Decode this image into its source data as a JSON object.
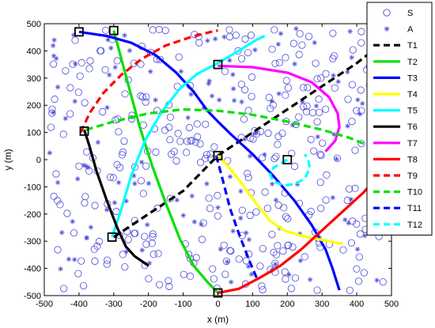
{
  "chart_data": {
    "type": "scatter",
    "xlabel": "x (m)",
    "ylabel": "y (m)",
    "xlim": [
      -500,
      500
    ],
    "ylim": [
      -500,
      500
    ],
    "xticks": [
      "-500",
      "-400",
      "-300",
      "-200",
      "-100",
      "0",
      "100",
      "200",
      "300",
      "400",
      "500"
    ],
    "yticks": [
      "-500",
      "-400",
      "-300",
      "-200",
      "-100",
      "0",
      "100",
      "200",
      "300",
      "400",
      "500"
    ],
    "grid": false,
    "legend_position": "right",
    "legend": [
      {
        "label": "S",
        "marker": "circle",
        "color": "#4a4ad8"
      },
      {
        "label": "A",
        "marker": "asterisk",
        "color": "#4a4ad8"
      },
      {
        "label": "T1",
        "color": "#000000",
        "dashed": true
      },
      {
        "label": "T2",
        "color": "#00e000",
        "dashed": false
      },
      {
        "label": "T3",
        "color": "#0000ff",
        "dashed": false
      },
      {
        "label": "T4",
        "color": "#ffff00",
        "dashed": false
      },
      {
        "label": "T5",
        "color": "#00ffff",
        "dashed": false
      },
      {
        "label": "T6",
        "color": "#000000",
        "dashed": false
      },
      {
        "label": "T7",
        "color": "#ff00ff",
        "dashed": false
      },
      {
        "label": "T8",
        "color": "#ff0000",
        "dashed": false
      },
      {
        "label": "T9",
        "color": "#ff0000",
        "dashed": true
      },
      {
        "label": "T10",
        "color": "#00e000",
        "dashed": true
      },
      {
        "label": "T11",
        "color": "#0000ff",
        "dashed": true
      },
      {
        "label": "T12",
        "color": "#00ffff",
        "dashed": true
      }
    ],
    "series": [
      {
        "name": "T1",
        "points": [
          [
            -300,
            -285
          ],
          [
            -200,
            -200
          ],
          [
            -100,
            -115
          ],
          [
            0,
            15
          ],
          [
            100,
            100
          ],
          [
            200,
            185
          ],
          [
            300,
            270
          ],
          [
            400,
            355
          ],
          [
            430,
            385
          ]
        ]
      },
      {
        "name": "T2",
        "points": [
          [
            -300,
            475
          ],
          [
            -280,
            380
          ],
          [
            -255,
            260
          ],
          [
            -225,
            120
          ],
          [
            -190,
            -20
          ],
          [
            -150,
            -160
          ],
          [
            -110,
            -290
          ],
          [
            -70,
            -390
          ],
          [
            -30,
            -450
          ],
          [
            0,
            -490
          ]
        ]
      },
      {
        "name": "T3",
        "points": [
          [
            -400,
            470
          ],
          [
            -320,
            455
          ],
          [
            -250,
            430
          ],
          [
            -180,
            385
          ],
          [
            -120,
            320
          ],
          [
            -70,
            250
          ],
          [
            -30,
            180
          ],
          [
            0,
            140
          ],
          [
            40,
            90
          ],
          [
            100,
            20
          ],
          [
            160,
            -60
          ],
          [
            220,
            -150
          ],
          [
            270,
            -240
          ],
          [
            310,
            -330
          ],
          [
            330,
            -400
          ],
          [
            350,
            -480
          ]
        ]
      },
      {
        "name": "T4",
        "points": [
          [
            0,
            15
          ],
          [
            30,
            -25
          ],
          [
            70,
            -90
          ],
          [
            110,
            -160
          ],
          [
            150,
            -225
          ],
          [
            190,
            -260
          ],
          [
            240,
            -280
          ],
          [
            300,
            -295
          ],
          [
            360,
            -310
          ]
        ]
      },
      {
        "name": "T5",
        "points": [
          [
            -305,
            -285
          ],
          [
            -280,
            -190
          ],
          [
            -250,
            -60
          ],
          [
            -210,
            70
          ],
          [
            -160,
            180
          ],
          [
            -110,
            260
          ],
          [
            -60,
            315
          ],
          [
            0,
            355
          ],
          [
            60,
            400
          ],
          [
            110,
            440
          ],
          [
            135,
            455
          ]
        ]
      },
      {
        "name": "T6",
        "points": [
          [
            -385,
            110
          ],
          [
            -370,
            50
          ],
          [
            -350,
            -40
          ],
          [
            -320,
            -150
          ],
          [
            -290,
            -250
          ],
          [
            -265,
            -320
          ],
          [
            -240,
            -355
          ],
          [
            -200,
            -390
          ]
        ]
      },
      {
        "name": "T7",
        "points": [
          [
            0,
            345
          ],
          [
            100,
            340
          ],
          [
            200,
            320
          ],
          [
            270,
            285
          ],
          [
            320,
            230
          ],
          [
            345,
            170
          ],
          [
            350,
            120
          ],
          [
            338,
            70
          ],
          [
            310,
            30
          ]
        ]
      },
      {
        "name": "T8",
        "points": [
          [
            0,
            -490
          ],
          [
            60,
            -475
          ],
          [
            120,
            -435
          ],
          [
            180,
            -390
          ],
          [
            240,
            -330
          ],
          [
            300,
            -260
          ],
          [
            360,
            -190
          ],
          [
            420,
            -120
          ],
          [
            440,
            -90
          ]
        ]
      },
      {
        "name": "T9",
        "points": [
          [
            -395,
            100
          ],
          [
            -370,
            170
          ],
          [
            -330,
            245
          ],
          [
            -280,
            310
          ],
          [
            -220,
            370
          ],
          [
            -150,
            420
          ],
          [
            -80,
            450
          ],
          [
            -20,
            470
          ],
          [
            0,
            475
          ]
        ]
      },
      {
        "name": "T10",
        "points": [
          [
            -380,
            110
          ],
          [
            -300,
            140
          ],
          [
            -200,
            170
          ],
          [
            -100,
            185
          ],
          [
            0,
            180
          ],
          [
            100,
            165
          ],
          [
            200,
            140
          ],
          [
            300,
            110
          ],
          [
            380,
            80
          ],
          [
            445,
            45
          ]
        ]
      },
      {
        "name": "T11",
        "points": [
          [
            -5,
            15
          ],
          [
            15,
            -80
          ],
          [
            35,
            -180
          ],
          [
            60,
            -270
          ],
          [
            90,
            -370
          ],
          [
            115,
            -445
          ]
        ]
      },
      {
        "name": "T12",
        "points": [
          [
            200,
            0
          ],
          [
            160,
            -30
          ],
          [
            150,
            -55
          ],
          [
            160,
            -80
          ],
          [
            190,
            -95
          ],
          [
            220,
            -90
          ],
          [
            250,
            -70
          ],
          [
            265,
            -30
          ],
          [
            260,
            0
          ],
          [
            250,
            20
          ]
        ]
      }
    ],
    "square_markers": [
      [
        -400,
        470
      ],
      [
        -300,
        475
      ],
      [
        0,
        350
      ],
      [
        -385,
        105
      ],
      [
        0,
        15
      ],
      [
        200,
        0
      ],
      [
        -305,
        -285
      ],
      [
        0,
        -490
      ]
    ]
  }
}
